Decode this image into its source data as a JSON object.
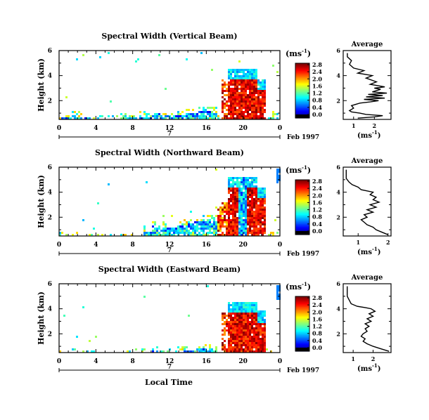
{
  "figure": {
    "bottom_xlabel": "Local Time",
    "units_label": "(ms",
    "units_exp": "-1",
    "units_close": ")"
  },
  "chart_data": [
    {
      "type": "heatmap",
      "title": "Spectral Width (Vertical Beam)",
      "ylabel": "Height (km)",
      "x_ticks": [
        "0",
        "4",
        "8",
        "12",
        "16",
        "20",
        "0"
      ],
      "xlim": [
        0,
        24
      ],
      "y_ticks": [
        "2",
        "4",
        "6"
      ],
      "ylim": [
        0.5,
        6
      ],
      "date_marker": "7",
      "date_label": "Feb 1997",
      "colorbar": {
        "label": "(ms-1)",
        "ticks": [
          "0.0",
          "0.4",
          "0.8",
          "1.2",
          "1.6",
          "2.0",
          "2.4",
          "2.8"
        ],
        "range": [
          0,
          2.8
        ]
      },
      "average": {
        "title": "Average",
        "xlabel": "(ms-1)",
        "x_ticks": [
          "1",
          "2"
        ],
        "xlim": [
          0.5,
          2.8
        ],
        "y_ticks": [
          "2",
          "4",
          "6"
        ],
        "ylim": [
          0.5,
          6
        ],
        "profile": [
          [
            1.2,
            0.6
          ],
          [
            2.0,
            0.7
          ],
          [
            2.4,
            0.8
          ],
          [
            1.6,
            0.9
          ],
          [
            1.3,
            1.0
          ],
          [
            0.9,
            1.1
          ],
          [
            0.8,
            1.2
          ],
          [
            1.0,
            1.4
          ],
          [
            0.9,
            1.6
          ],
          [
            1.3,
            1.8
          ],
          [
            1.8,
            1.9
          ],
          [
            2.2,
            2.0
          ],
          [
            1.5,
            2.1
          ],
          [
            2.5,
            2.2
          ],
          [
            1.6,
            2.3
          ],
          [
            2.4,
            2.4
          ],
          [
            1.7,
            2.5
          ],
          [
            2.6,
            2.6
          ],
          [
            1.9,
            2.7
          ],
          [
            2.3,
            2.9
          ],
          [
            2.0,
            3.0
          ],
          [
            2.5,
            3.1
          ],
          [
            1.8,
            3.3
          ],
          [
            2.1,
            3.5
          ],
          [
            1.6,
            3.8
          ],
          [
            1.9,
            4.0
          ],
          [
            1.2,
            4.2
          ],
          [
            1.5,
            4.4
          ],
          [
            1.0,
            4.6
          ],
          [
            0.8,
            4.9
          ],
          [
            0.9,
            5.2
          ],
          [
            0.7,
            5.5
          ],
          [
            0.7,
            5.8
          ]
        ]
      }
    },
    {
      "type": "heatmap",
      "title": "Spectral Width (Northward Beam)",
      "ylabel": "Height (km)",
      "x_ticks": [
        "0",
        "4",
        "8",
        "12",
        "16",
        "20",
        "0"
      ],
      "xlim": [
        0,
        24
      ],
      "y_ticks": [
        "2",
        "4",
        "6"
      ],
      "ylim": [
        0.5,
        6
      ],
      "date_marker": "7",
      "date_label": "Feb 1997",
      "colorbar": {
        "label": "(ms-1)",
        "ticks": [
          "0.0",
          "0.4",
          "0.8",
          "1.2",
          "1.6",
          "2.0",
          "2.4",
          "2.8"
        ],
        "range": [
          0,
          2.8
        ]
      },
      "average": {
        "title": "Average",
        "xlabel": "(ms-1)",
        "x_ticks": [
          "1",
          "2"
        ],
        "xlim": [
          0.5,
          2.1
        ],
        "y_ticks": [
          "2",
          "4",
          "6"
        ],
        "ylim": [
          0.5,
          6
        ],
        "profile": [
          [
            2.0,
            0.6
          ],
          [
            1.8,
            0.8
          ],
          [
            1.6,
            1.0
          ],
          [
            1.5,
            1.2
          ],
          [
            1.3,
            1.4
          ],
          [
            1.2,
            1.6
          ],
          [
            1.1,
            1.8
          ],
          [
            1.3,
            2.0
          ],
          [
            1.2,
            2.2
          ],
          [
            1.5,
            2.4
          ],
          [
            1.3,
            2.6
          ],
          [
            1.6,
            2.8
          ],
          [
            1.4,
            3.0
          ],
          [
            1.7,
            3.2
          ],
          [
            1.5,
            3.4
          ],
          [
            1.6,
            3.6
          ],
          [
            1.4,
            3.8
          ],
          [
            1.5,
            4.0
          ],
          [
            1.1,
            4.2
          ],
          [
            1.0,
            4.4
          ],
          [
            0.8,
            4.6
          ],
          [
            0.7,
            4.8
          ],
          [
            0.6,
            5.1
          ],
          [
            0.6,
            5.5
          ],
          [
            0.6,
            5.8
          ]
        ]
      }
    },
    {
      "type": "heatmap",
      "title": "Spectral Width (Eastward Beam)",
      "ylabel": "Height (km)",
      "x_ticks": [
        "0",
        "4",
        "8",
        "12",
        "16",
        "20",
        "0"
      ],
      "xlim": [
        0,
        24
      ],
      "y_ticks": [
        "2",
        "4",
        "6"
      ],
      "ylim": [
        0.5,
        6
      ],
      "date_marker": "7",
      "date_label": "Feb 1997",
      "colorbar": {
        "label": "(ms-1)",
        "ticks": [
          "0.0",
          "0.4",
          "0.8",
          "1.2",
          "1.6",
          "2.0",
          "2.4",
          "2.8"
        ],
        "range": [
          0,
          2.8
        ]
      },
      "average": {
        "title": "Average",
        "xlabel": "(ms-1)",
        "x_ticks": [
          "1",
          "2"
        ],
        "xlim": [
          0.5,
          2.9
        ],
        "y_ticks": [
          "2",
          "4",
          "6"
        ],
        "ylim": [
          0.5,
          6
        ],
        "profile": [
          [
            2.8,
            0.6
          ],
          [
            2.4,
            0.8
          ],
          [
            2.0,
            1.0
          ],
          [
            1.7,
            1.2
          ],
          [
            1.5,
            1.4
          ],
          [
            1.6,
            1.6
          ],
          [
            1.4,
            1.8
          ],
          [
            1.5,
            2.0
          ],
          [
            1.7,
            2.2
          ],
          [
            1.6,
            2.4
          ],
          [
            1.8,
            2.6
          ],
          [
            1.6,
            2.8
          ],
          [
            1.9,
            3.0
          ],
          [
            1.7,
            3.2
          ],
          [
            2.0,
            3.4
          ],
          [
            1.8,
            3.6
          ],
          [
            2.1,
            3.8
          ],
          [
            1.9,
            4.0
          ],
          [
            1.6,
            4.1
          ],
          [
            1.2,
            4.2
          ],
          [
            0.9,
            4.4
          ],
          [
            0.8,
            4.7
          ],
          [
            0.7,
            5.0
          ],
          [
            0.7,
            5.4
          ],
          [
            0.7,
            5.8
          ]
        ]
      }
    }
  ]
}
